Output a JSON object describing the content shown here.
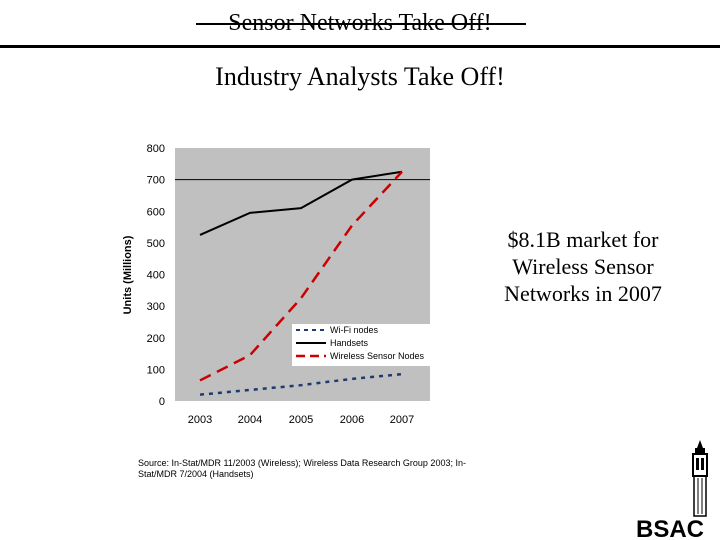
{
  "slide": {
    "title": "Sensor Networks Take Off!",
    "subtitle": "Industry Analysts Take Off!",
    "callout": "$8.1B market for Wireless Sensor Networks in 2007",
    "source": "Source: In-Stat/MDR 11/2003 (Wireless); Wireless Data Research Group 2003; In-Stat/MDR 7/2004 (Handsets)",
    "logo_text": "BSAC"
  },
  "chart_data": {
    "type": "line",
    "title": "",
    "xlabel": "",
    "ylabel": "Units (Millions)",
    "categories": [
      "2003",
      "2004",
      "2005",
      "2006",
      "2007"
    ],
    "ylim": [
      0,
      800
    ],
    "yticks": [
      0,
      100,
      200,
      300,
      400,
      500,
      600,
      700,
      800
    ],
    "reference_line": 700,
    "legend_position": "center-right",
    "series": [
      {
        "name": "Wi-Fi nodes",
        "values": [
          20,
          35,
          50,
          70,
          85
        ],
        "color": "#1f3a6e",
        "style": "dotted"
      },
      {
        "name": "Handsets",
        "values": [
          525,
          595,
          610,
          700,
          725
        ],
        "color": "#000000",
        "style": "solid"
      },
      {
        "name": "Wireless Sensor Nodes",
        "values": [
          65,
          145,
          325,
          555,
          725
        ],
        "color": "#cc0000",
        "style": "dashed"
      }
    ]
  }
}
